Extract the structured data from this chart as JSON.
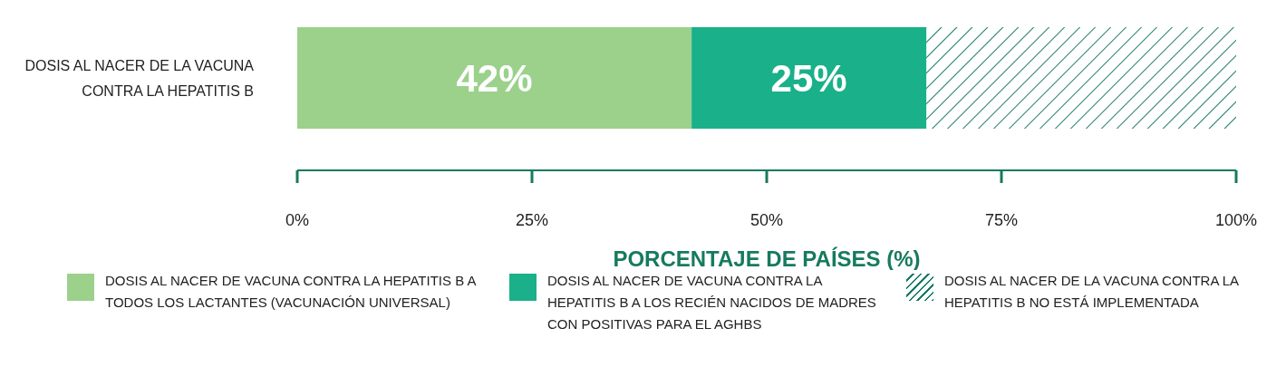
{
  "chart_data": {
    "type": "bar",
    "orientation": "horizontal",
    "stacked": true,
    "categories": [
      "DOSIS AL NACER DE LA VACUNA CONTRA LA HEPATITIS B"
    ],
    "series": [
      {
        "name": "DOSIS AL NACER DE VACUNA CONTRA LA HEPATITIS B A TODOS LOS LACTANTES (VACUNACIÓN UNIVERSAL)",
        "color": "#9bd18b",
        "values": [
          42
        ],
        "value_labels": [
          "42%"
        ]
      },
      {
        "name": "DOSIS AL NACER DE VACUNA CONTRA LA HEPATITIS B A LOS RECIÉN NACIDOS DE MADRES CON POSITIVAS PARA EL AGHBS",
        "color": "#1ab08a",
        "values": [
          25
        ],
        "value_labels": [
          "25%"
        ]
      },
      {
        "name": "DOSIS AL NACER DE LA VACUNA CONTRA LA HEPATITIS B NO ESTÁ IMPLEMENTADA",
        "color": "#167a66",
        "values": [
          33
        ],
        "value_labels": [
          null
        ]
      }
    ],
    "xlim": [
      0,
      100
    ],
    "xticks": [
      {
        "value": 0,
        "label": "0%"
      },
      {
        "value": 25,
        "label": "25%"
      },
      {
        "value": 50,
        "label": "50%"
      },
      {
        "value": 75,
        "label": "75%"
      },
      {
        "value": 100,
        "label": "100%"
      }
    ],
    "xlabel": "PORCENTAJE DE PAÍSES (%)",
    "legend": "bottom",
    "grid": false
  }
}
